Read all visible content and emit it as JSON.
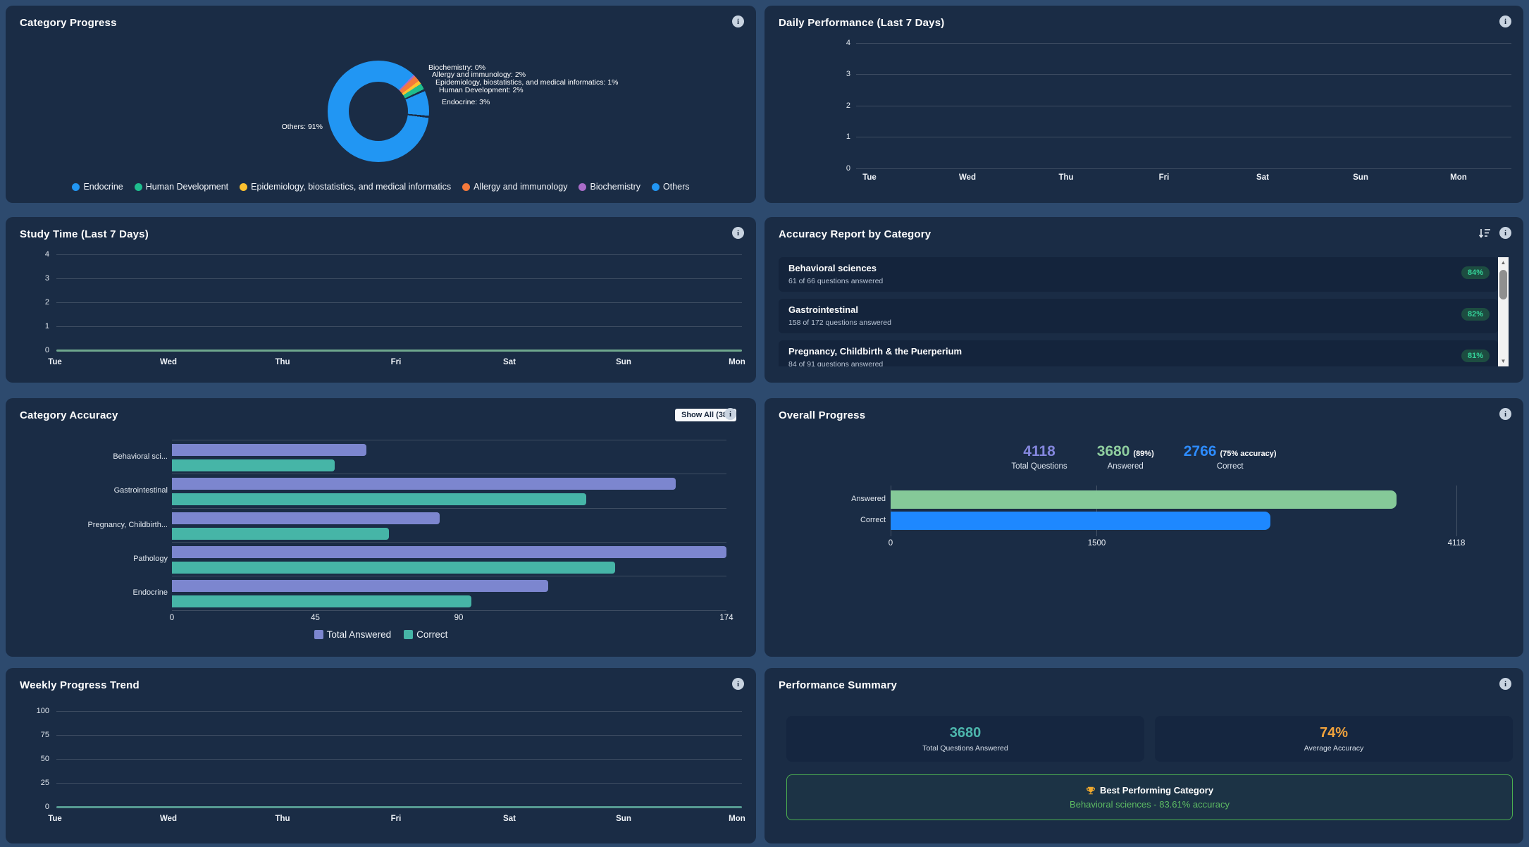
{
  "colors": {
    "page_bg": "#2d4a6e",
    "panel_bg": "#1a2c45",
    "card_bg": "#152640",
    "list_item_bg": "#14243c",
    "grid_line": "rgba(255,255,255,0.16)",
    "text_primary": "#ffffff",
    "text_secondary": "#b9c5d6",
    "donut_blue": "#2196f3",
    "green": "#1fbd8e",
    "yellow": "#fdc12f",
    "orange": "#f4793b",
    "purple": "#a96cc8",
    "bar_purple": "#7c86cf",
    "bar_teal": "#46b5a7",
    "bar_green": "#85c998",
    "bar_blue": "#1e88ff",
    "stat_purple": "#8487de",
    "stat_green": "#8fce9f",
    "stat_blue": "#2d8cff",
    "stat_teal": "#4db6ac",
    "stat_orange": "#f2a33c",
    "badge_bg": "#1d4d41",
    "badge_text": "#35d399",
    "best_green": "#4caf50",
    "zero_line_green": "#6fa78d",
    "zero_line_teal": "#569b92"
  },
  "panels": {
    "category_progress": {
      "title": "Category Progress",
      "chart_data": {
        "type": "pie",
        "labels": [
          "Endocrine",
          "Human Development",
          "Epidemiology, biostatistics, and medical informatics",
          "Allergy and immunology",
          "Biochemistry",
          "Others"
        ],
        "values": [
          3,
          2,
          1,
          2,
          0,
          91
        ],
        "legend_position": "bottom",
        "display_segments": [
          {
            "color": "donut_blue",
            "from": 0,
            "to": 44
          },
          {
            "color": "purple",
            "from": 44,
            "to": 46
          },
          {
            "color": "orange",
            "from": 46,
            "to": 53
          },
          {
            "color": "yellow",
            "from": 53,
            "to": 57
          },
          {
            "color": "green",
            "from": 57,
            "to": 64
          },
          {
            "color": "gap",
            "from": 64,
            "to": 66.5
          },
          {
            "color": "donut_blue",
            "from": 66.5,
            "to": 95
          },
          {
            "color": "gap",
            "from": 95,
            "to": 97.5
          },
          {
            "color": "donut_blue",
            "from": 97.5,
            "to": 360
          }
        ]
      },
      "callouts": [
        "Biochemistry: 0%",
        "Allergy and immunology: 2%",
        "Epidemiology, biostatistics, and medical informatics: 1%",
        "Human Development: 2%",
        "Endocrine: 3%",
        "Others: 91%"
      ],
      "legend": [
        {
          "label": "Endocrine",
          "color": "donut_blue"
        },
        {
          "label": "Human Development",
          "color": "green"
        },
        {
          "label": "Epidemiology, biostatistics, and medical informatics",
          "color": "yellow"
        },
        {
          "label": "Allergy and immunology",
          "color": "orange"
        },
        {
          "label": "Biochemistry",
          "color": "purple"
        },
        {
          "label": "Others",
          "color": "donut_blue"
        }
      ]
    },
    "daily_performance": {
      "title": "Daily Performance (Last 7 Days)",
      "chart_data": {
        "type": "line",
        "x": [
          "Tue",
          "Wed",
          "Thu",
          "Fri",
          "Sat",
          "Sun",
          "Mon"
        ],
        "series": [],
        "yticks": [
          "4",
          "3",
          "2",
          "1",
          "0"
        ],
        "ylim": [
          0,
          4
        ],
        "grid": true
      }
    },
    "study_time": {
      "title": "Study Time (Last 7 Days)",
      "chart_data": {
        "type": "line",
        "x": [
          "Tue",
          "Wed",
          "Thu",
          "Fri",
          "Sat",
          "Sun",
          "Mon"
        ],
        "values": [
          0,
          0,
          0,
          0,
          0,
          0,
          0
        ],
        "yticks": [
          "4",
          "3",
          "2",
          "1",
          "0"
        ],
        "ylim": [
          0,
          4
        ],
        "line_color": "zero_line_green",
        "grid": true
      }
    },
    "accuracy_report": {
      "title": "Accuracy Report by Category",
      "items": [
        {
          "name": "Behavioral sciences",
          "detail": "61 of 66 questions answered",
          "accuracy": "84%"
        },
        {
          "name": "Gastrointestinal",
          "detail": "158 of 172 questions answered",
          "accuracy": "82%"
        },
        {
          "name": "Pregnancy, Childbirth & the Puerperium",
          "detail": "84 of 91 questions answered",
          "accuracy": "81%"
        }
      ]
    },
    "category_accuracy": {
      "title": "Category Accuracy",
      "show_all_label": "Show All (38)",
      "chart_data": {
        "type": "bar",
        "orientation": "horizontal",
        "categories": [
          "Behavioral sci...",
          "Gastrointestinal",
          "Pregnancy, Childbirth...",
          "Pathology",
          "Endocrine"
        ],
        "series": [
          {
            "name": "Total Answered",
            "color": "bar_purple",
            "values": [
              61,
              158,
              84,
              174,
              118
            ]
          },
          {
            "name": "Correct",
            "color": "bar_teal",
            "values": [
              51,
              130,
              68,
              139,
              94
            ]
          }
        ],
        "xticks": [
          "0",
          "45",
          "90",
          "174"
        ],
        "xtick_values": [
          0,
          45,
          90,
          174
        ],
        "xlim": [
          0,
          174
        ],
        "legend_position": "bottom"
      }
    },
    "overall_progress": {
      "title": "Overall Progress",
      "stats": [
        {
          "value": "4118",
          "suffix": "",
          "label": "Total Questions",
          "color": "stat_purple"
        },
        {
          "value": "3680",
          "suffix": "(89%)",
          "label": "Answered",
          "color": "stat_green"
        },
        {
          "value": "2766",
          "suffix": "(75% accuracy)",
          "label": "Correct",
          "color": "stat_blue"
        }
      ],
      "chart_data": {
        "type": "bar",
        "orientation": "horizontal",
        "categories": [
          "Answered",
          "Correct"
        ],
        "values": [
          3680,
          2766
        ],
        "colors": [
          "bar_green",
          "bar_blue"
        ],
        "xticks": [
          "0",
          "1500",
          "4118"
        ],
        "xtick_values": [
          0,
          1500,
          4118
        ],
        "xlim": [
          0,
          4118
        ]
      }
    },
    "weekly_progress": {
      "title": "Weekly Progress Trend",
      "chart_data": {
        "type": "line",
        "x": [
          "Tue",
          "Wed",
          "Thu",
          "Fri",
          "Sat",
          "Sun",
          "Mon"
        ],
        "values": [
          0,
          0,
          0,
          0,
          0,
          0,
          0
        ],
        "yticks": [
          "100",
          "75",
          "50",
          "25",
          "0"
        ],
        "ylim": [
          0,
          100
        ],
        "line_color": "zero_line_teal",
        "grid": true
      }
    },
    "performance_summary": {
      "title": "Performance Summary",
      "stats": [
        {
          "value": "3680",
          "label": "Total Questions Answered",
          "color": "stat_teal"
        },
        {
          "value": "74%",
          "label": "Average Accuracy",
          "color": "stat_orange"
        }
      ],
      "best": {
        "heading": "Best Performing Category",
        "detail": "Behavioral sciences - 83.61% accuracy"
      }
    }
  }
}
